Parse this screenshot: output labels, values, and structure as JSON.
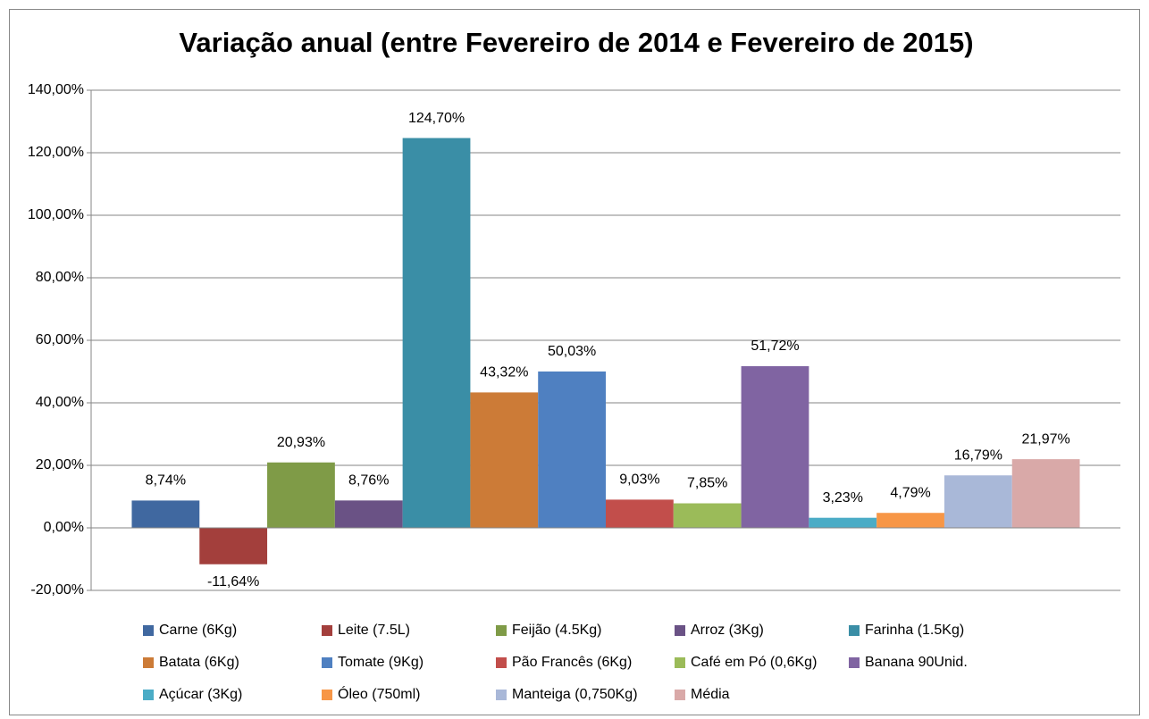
{
  "chart_data": {
    "type": "bar",
    "title": "Variação anual (entre Fevereiro de 2014 e Fevereiro de 2015)",
    "categories": [
      null
    ],
    "ylim": [
      -20,
      140
    ],
    "yticks": [
      {
        "value": -20,
        "label": "-20,00%"
      },
      {
        "value": 0,
        "label": "0,00%"
      },
      {
        "value": 20,
        "label": "20,00%"
      },
      {
        "value": 40,
        "label": "40,00%"
      },
      {
        "value": 60,
        "label": "60,00%"
      },
      {
        "value": 80,
        "label": "80,00%"
      },
      {
        "value": 100,
        "label": "100,00%"
      },
      {
        "value": 120,
        "label": "120,00%"
      },
      {
        "value": 140,
        "label": "140,00%"
      }
    ],
    "grid": true,
    "legend": "bottom",
    "series": [
      {
        "name": "Carne (6Kg)",
        "color": "#4068a0",
        "values": [
          8.74
        ],
        "value_labels": [
          "8,74%"
        ]
      },
      {
        "name": "Leite (7.5L)",
        "color": "#a33f3c",
        "values": [
          -11.64
        ],
        "value_labels": [
          "-11,64%"
        ]
      },
      {
        "name": "Feijão (4.5Kg)",
        "color": "#7f9b47",
        "values": [
          20.93
        ],
        "value_labels": [
          "20,93%"
        ]
      },
      {
        "name": "Arroz (3Kg)",
        "color": "#6a5285",
        "values": [
          8.76
        ],
        "value_labels": [
          "8,76%"
        ]
      },
      {
        "name": "Farinha (1.5Kg)",
        "color": "#3a8ea6",
        "values": [
          124.7
        ],
        "value_labels": [
          "124,70%"
        ]
      },
      {
        "name": "Batata (6Kg)",
        "color": "#cc7b37",
        "values": [
          43.32
        ],
        "value_labels": [
          "43,32%"
        ]
      },
      {
        "name": "Tomate (9Kg)",
        "color": "#4f80c1",
        "values": [
          50.03
        ],
        "value_labels": [
          "50,03%"
        ]
      },
      {
        "name": "Pão Francês (6Kg)",
        "color": "#c24e4b",
        "values": [
          9.03
        ],
        "value_labels": [
          "9,03%"
        ]
      },
      {
        "name": "Café em Pó (0,6Kg)",
        "color": "#9bbb59",
        "values": [
          7.85
        ],
        "value_labels": [
          "7,85%"
        ]
      },
      {
        "name": "Banana 90Unid.",
        "color": "#8064a2",
        "values": [
          51.72
        ],
        "value_labels": [
          "51,72%"
        ]
      },
      {
        "name": "Açúcar (3Kg)",
        "color": "#4bacc6",
        "values": [
          3.23
        ],
        "value_labels": [
          "3,23%"
        ]
      },
      {
        "name": "Óleo (750ml)",
        "color": "#f79646",
        "values": [
          4.79
        ],
        "value_labels": [
          "4,79%"
        ]
      },
      {
        "name": "Manteiga (0,750Kg)",
        "color": "#a9b8d8",
        "values": [
          16.79
        ],
        "value_labels": [
          "16,79%"
        ]
      },
      {
        "name": "Média",
        "color": "#d9a9a8",
        "values": [
          21.97
        ],
        "value_labels": [
          "21,97%"
        ]
      }
    ]
  }
}
